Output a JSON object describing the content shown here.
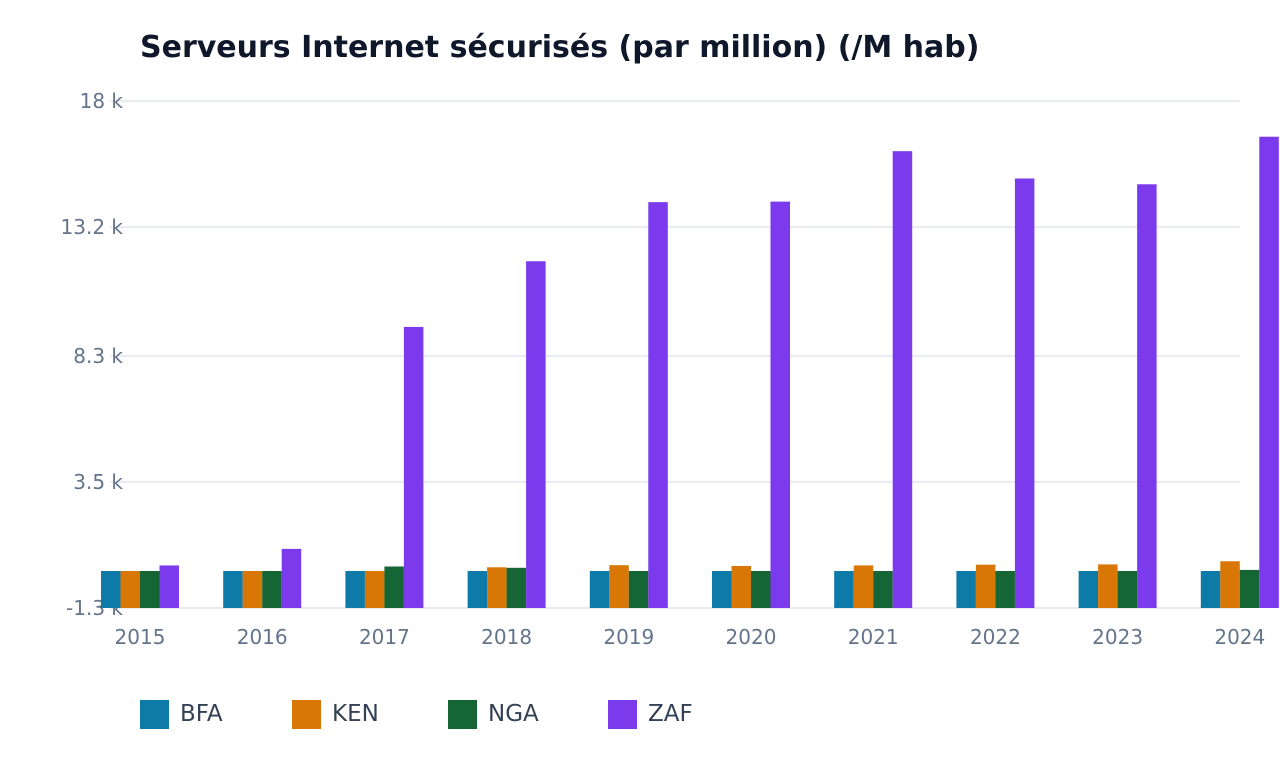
{
  "chart_data": {
    "type": "bar",
    "title": "Serveurs Internet sécurisés (par million) (/M hab)",
    "xlabel": "",
    "ylabel": "",
    "categories": [
      "2015",
      "2016",
      "2017",
      "2018",
      "2019",
      "2020",
      "2021",
      "2022",
      "2023",
      "2024"
    ],
    "y_ticks": [
      "18 k",
      "13.2 k",
      "8.3 k",
      "3.5 k",
      "-1.3 k"
    ],
    "y_tick_values": [
      18000,
      13200,
      8300,
      3500,
      -1300
    ],
    "ylim": [
      -1300,
      18000
    ],
    "grid": true,
    "legend_position": "bottom-left",
    "series": [
      {
        "name": "BFA",
        "color": "#0e7aa8",
        "values": [
          40,
          40,
          40,
          40,
          40,
          40,
          40,
          40,
          40,
          50
        ]
      },
      {
        "name": "KEN",
        "color": "#d97706",
        "values": [
          40,
          40,
          40,
          250,
          330,
          300,
          320,
          350,
          360,
          480
        ]
      },
      {
        "name": "NGA",
        "color": "#166534",
        "values": [
          40,
          80,
          280,
          230,
          80,
          90,
          90,
          100,
          90,
          150
        ]
      },
      {
        "name": "ZAF",
        "color": "#7c3aed",
        "values": [
          320,
          950,
          9400,
          11900,
          14150,
          14170,
          16090,
          15050,
          14830,
          16640
        ]
      }
    ]
  }
}
